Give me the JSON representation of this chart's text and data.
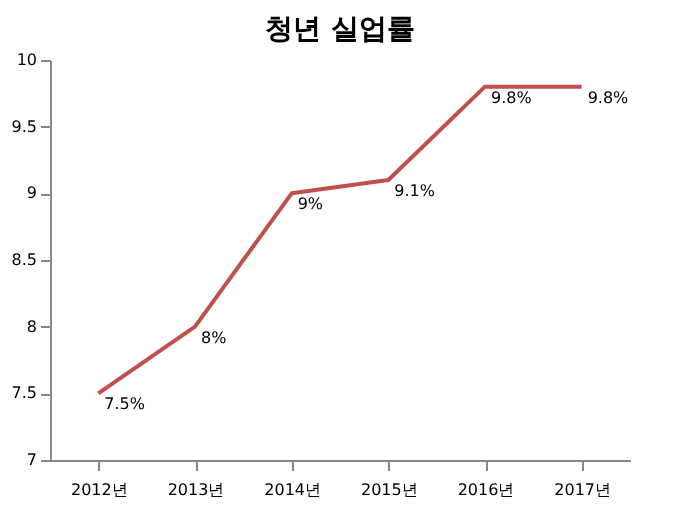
{
  "chart_data": {
    "type": "line",
    "title": "청년 실업률",
    "categories": [
      "2012년",
      "2013년",
      "2014년",
      "2015년",
      "2016년",
      "2017년"
    ],
    "series": [
      {
        "color": "#c0504d",
        "values": [
          7.5,
          8,
          9,
          9.1,
          9.8,
          9.8
        ],
        "value_labels": [
          "7.5%",
          "8%",
          "9%",
          "9.1%",
          "9.8%",
          "9.8%"
        ]
      }
    ],
    "ylim": [
      7,
      10
    ],
    "yticks": [
      7,
      7.5,
      8,
      8.5,
      9,
      9.5,
      10
    ],
    "grid": false,
    "legend": false,
    "marker": "none",
    "line_style": "solid"
  }
}
